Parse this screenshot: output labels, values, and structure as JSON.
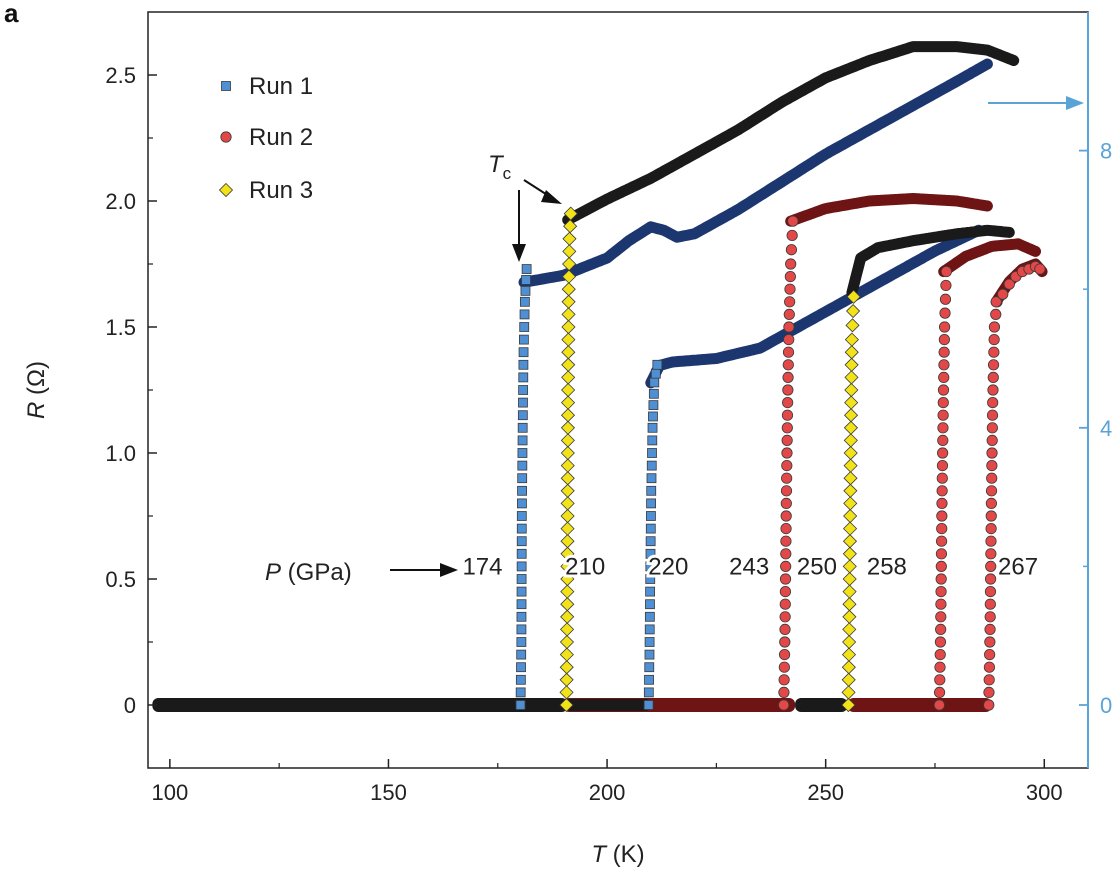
{
  "chart_data": {
    "type": "scatter",
    "panel_label": "a",
    "xlabel": {
      "symbol": "T",
      "unit": " (K)"
    },
    "ylabel": {
      "symbol": "R",
      "unit": " (Ω)"
    },
    "xlim": [
      95,
      310
    ],
    "ylim": [
      -0.25,
      2.75
    ],
    "y2lim": [
      0,
      8
    ],
    "x_ticks": [
      100,
      150,
      200,
      250,
      300
    ],
    "y_ticks": [
      0,
      0.5,
      1.0,
      1.5,
      2.0,
      2.5
    ],
    "y_tick_labels": [
      "0",
      "0.5",
      "1.0",
      "1.5",
      "2.0",
      "2.5"
    ],
    "y2_ticks": [
      0,
      4,
      8
    ],
    "y2_color": "#5ba3d6",
    "legend": {
      "position": "top-left",
      "entries": [
        {
          "label": "Run 1",
          "marker": "square",
          "color": "#4f8fd4"
        },
        {
          "label": "Run 2",
          "marker": "circle",
          "color": "#e24848"
        },
        {
          "label": "Run 3",
          "marker": "diamond",
          "color": "#f2e21a"
        }
      ]
    },
    "annotations": {
      "tc_symbol": "T",
      "tc_sub": "c",
      "pressure_symbol": "P",
      "pressure_unit": " (GPa)",
      "pressures": [
        {
          "label": "174",
          "x": 171.5,
          "y": 0.55
        },
        {
          "label": "210",
          "x": 195.0,
          "y": 0.55
        },
        {
          "label": "220",
          "x": 214.0,
          "y": 0.55
        },
        {
          "label": "243",
          "x": 232.5,
          "y": 0.55
        },
        {
          "label": "250",
          "x": 248.0,
          "y": 0.55
        },
        {
          "label": "258",
          "x": 264.0,
          "y": 0.55
        },
        {
          "label": "267",
          "x": 294.0,
          "y": 0.55
        }
      ]
    },
    "series": [
      {
        "name": "Run 1",
        "marker": "square",
        "fill": "#4f8fd4",
        "line": "#1c3670",
        "line_axis": "right",
        "curves": [
          {
            "tc": 180,
            "r_top": 1.73,
            "steep": [
              [
                180.2,
                0.0
              ],
              [
                180.4,
                0.25
              ],
              [
                180.5,
                0.75
              ],
              [
                180.7,
                1.1
              ],
              [
                180.9,
                1.4
              ],
              [
                181.2,
                1.6
              ],
              [
                181.6,
                1.73
              ]
            ],
            "top": [
              [
                181,
                6.1
              ],
              [
                190,
                6.2
              ],
              [
                200,
                6.45
              ],
              [
                205,
                6.7
              ],
              [
                210,
                6.9
              ],
              [
                213,
                6.85
              ],
              [
                216,
                6.75
              ],
              [
                220,
                6.8
              ],
              [
                230,
                7.15
              ],
              [
                240,
                7.55
              ],
              [
                250,
                7.95
              ],
              [
                260,
                8.3
              ],
              [
                270,
                8.65
              ],
              [
                280,
                9.0
              ],
              [
                287,
                9.25
              ]
            ]
          },
          {
            "tc": 209,
            "r_top": 1.35,
            "steep": [
              [
                209.5,
                0.0
              ],
              [
                209.7,
                0.2
              ],
              [
                209.9,
                0.55
              ],
              [
                210.1,
                0.85
              ],
              [
                210.4,
                1.1
              ],
              [
                210.8,
                1.28
              ],
              [
                211.5,
                1.35
              ]
            ],
            "top": [
              [
                210,
                4.65
              ],
              [
                212,
                4.9
              ],
              [
                215,
                4.95
              ],
              [
                225,
                5.0
              ],
              [
                235,
                5.15
              ],
              [
                245,
                5.5
              ],
              [
                255,
                5.85
              ],
              [
                265,
                6.2
              ],
              [
                275,
                6.55
              ],
              [
                285,
                6.85
              ]
            ]
          }
        ]
      },
      {
        "name": "Run 2",
        "marker": "circle",
        "fill": "#e24848",
        "line": "#6e1414",
        "line_axis": "left",
        "curves": [
          {
            "tc": 240,
            "r_top": 1.92,
            "steep": [
              [
                240.4,
                0.0
              ],
              [
                240.7,
                0.3
              ],
              [
                241.0,
                0.8
              ],
              [
                241.3,
                1.2
              ],
              [
                241.6,
                1.5
              ],
              [
                242.0,
                1.75
              ],
              [
                242.5,
                1.92
              ]
            ],
            "top": [
              [
                242,
                1.92
              ],
              [
                250,
                1.97
              ],
              [
                260,
                2.0
              ],
              [
                270,
                2.01
              ],
              [
                280,
                2.0
              ],
              [
                287,
                1.98
              ]
            ]
          },
          {
            "tc": 276,
            "r_top": 1.75,
            "steep": [
              [
                276.0,
                0.0
              ],
              [
                276.3,
                0.3
              ],
              [
                276.6,
                0.8
              ],
              [
                276.9,
                1.2
              ],
              [
                277.2,
                1.5
              ],
              [
                277.6,
                1.72
              ]
            ],
            "top": [
              [
                277,
                1.72
              ],
              [
                282,
                1.78
              ],
              [
                288,
                1.82
              ],
              [
                294,
                1.83
              ],
              [
                298,
                1.8
              ]
            ]
          },
          {
            "tc": 287,
            "r_top": 1.6,
            "steep": [
              [
                287.3,
                0.0
              ],
              [
                287.6,
                0.3
              ],
              [
                287.9,
                0.8
              ],
              [
                288.2,
                1.2
              ],
              [
                288.6,
                1.5
              ],
              [
                289.2,
                1.6
              ]
            ],
            "top": [
              [
                289,
                1.6
              ],
              [
                292,
                1.68
              ],
              [
                295,
                1.73
              ],
              [
                298,
                1.75
              ],
              [
                299.5,
                1.72
              ]
            ]
          }
        ]
      },
      {
        "name": "Run 3",
        "marker": "diamond",
        "fill": "#f2e21a",
        "line": "#1a1a1a",
        "line_axis": "right",
        "curves": [
          {
            "tc": 191,
            "r_top": 1.95,
            "steep": [
              [
                190.7,
                0.0
              ],
              [
                190.9,
                0.4
              ],
              [
                191.0,
                0.9
              ],
              [
                191.1,
                1.3
              ],
              [
                191.2,
                1.6
              ],
              [
                191.4,
                1.85
              ],
              [
                191.7,
                1.95
              ]
            ],
            "top": [
              [
                191,
                7.0
              ],
              [
                200,
                7.3
              ],
              [
                210,
                7.6
              ],
              [
                220,
                7.95
              ],
              [
                230,
                8.3
              ],
              [
                240,
                8.7
              ],
              [
                250,
                9.05
              ],
              [
                260,
                9.3
              ],
              [
                270,
                9.5
              ],
              [
                280,
                9.5
              ],
              [
                287,
                9.45
              ],
              [
                293,
                9.3
              ]
            ]
          },
          {
            "tc": 255,
            "r_top": 1.62,
            "steep": [
              [
                255.2,
                0.0
              ],
              [
                255.4,
                0.3
              ],
              [
                255.6,
                0.75
              ],
              [
                255.8,
                1.15
              ],
              [
                256.0,
                1.45
              ],
              [
                256.4,
                1.62
              ]
            ],
            "top": [
              [
                256,
                5.95
              ],
              [
                258,
                6.45
              ],
              [
                262,
                6.6
              ],
              [
                270,
                6.7
              ],
              [
                280,
                6.8
              ],
              [
                287,
                6.85
              ],
              [
                292,
                6.82
              ]
            ]
          }
        ]
      }
    ]
  }
}
